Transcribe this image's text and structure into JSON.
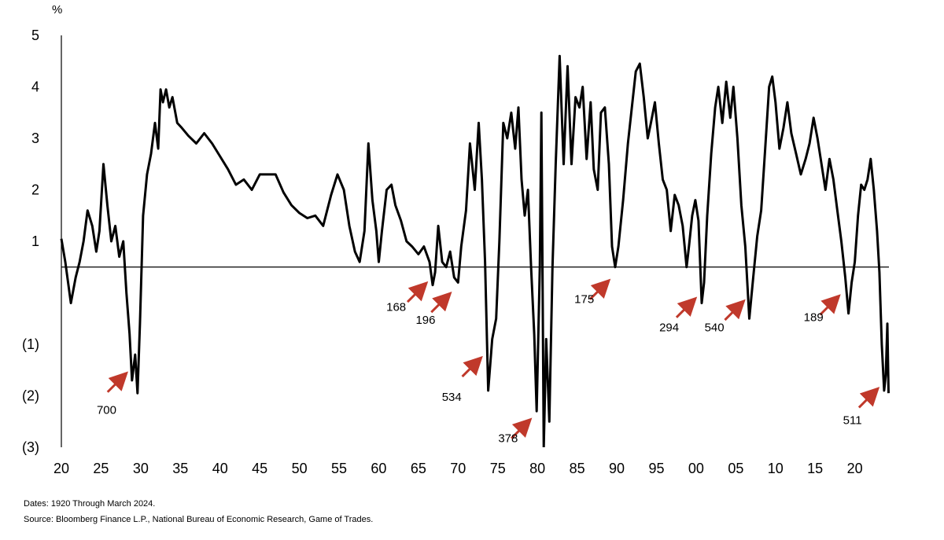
{
  "chart_data": {
    "type": "line",
    "unit_label": "%",
    "title": "",
    "xlabel": "",
    "ylabel": "%",
    "xlim": [
      1920,
      2024.3
    ],
    "ylim": [
      -3,
      5
    ],
    "grid": false,
    "zero_line": 0.5,
    "x_ticks": [
      {
        "x": 1920,
        "label": "20"
      },
      {
        "x": 1925,
        "label": "25"
      },
      {
        "x": 1930,
        "label": "30"
      },
      {
        "x": 1935,
        "label": "35"
      },
      {
        "x": 1940,
        "label": "40"
      },
      {
        "x": 1945,
        "label": "45"
      },
      {
        "x": 1950,
        "label": "50"
      },
      {
        "x": 1955,
        "label": "55"
      },
      {
        "x": 1960,
        "label": "60"
      },
      {
        "x": 1965,
        "label": "65"
      },
      {
        "x": 1970,
        "label": "70"
      },
      {
        "x": 1975,
        "label": "75"
      },
      {
        "x": 1980,
        "label": "80"
      },
      {
        "x": 1985,
        "label": "85"
      },
      {
        "x": 1990,
        "label": "90"
      },
      {
        "x": 1995,
        "label": "95"
      },
      {
        "x": 2000,
        "label": "00"
      },
      {
        "x": 2005,
        "label": "05"
      },
      {
        "x": 2010,
        "label": "10"
      },
      {
        "x": 2015,
        "label": "15"
      },
      {
        "x": 2020,
        "label": "20"
      }
    ],
    "y_ticks": [
      {
        "y": 5,
        "label": "5"
      },
      {
        "y": 4,
        "label": "4"
      },
      {
        "y": 3,
        "label": "3"
      },
      {
        "y": 2,
        "label": "2"
      },
      {
        "y": 1,
        "label": "1"
      },
      {
        "y": -1,
        "label": "(1)"
      },
      {
        "y": -2,
        "label": "(2)"
      },
      {
        "y": -3,
        "label": "(3)"
      }
    ],
    "series": [
      {
        "color": "#000000",
        "points": [
          [
            1920.0,
            1.05
          ],
          [
            1920.5,
            0.6
          ],
          [
            1921.2,
            -0.2
          ],
          [
            1921.8,
            0.3
          ],
          [
            1922.3,
            0.6
          ],
          [
            1922.8,
            1.0
          ],
          [
            1923.3,
            1.6
          ],
          [
            1923.9,
            1.3
          ],
          [
            1924.4,
            0.8
          ],
          [
            1924.8,
            1.2
          ],
          [
            1925.3,
            2.5
          ],
          [
            1925.8,
            1.7
          ],
          [
            1926.3,
            1.0
          ],
          [
            1926.8,
            1.3
          ],
          [
            1927.3,
            0.7
          ],
          [
            1927.8,
            1.0
          ],
          [
            1928.2,
            0.0
          ],
          [
            1928.6,
            -0.8
          ],
          [
            1928.9,
            -1.7
          ],
          [
            1929.3,
            -1.2
          ],
          [
            1929.6,
            -1.95
          ],
          [
            1929.9,
            -0.6
          ],
          [
            1930.3,
            1.5
          ],
          [
            1930.8,
            2.3
          ],
          [
            1931.3,
            2.7
          ],
          [
            1931.8,
            3.3
          ],
          [
            1932.2,
            2.8
          ],
          [
            1932.5,
            3.95
          ],
          [
            1932.8,
            3.7
          ],
          [
            1933.2,
            3.95
          ],
          [
            1933.6,
            3.6
          ],
          [
            1934.0,
            3.8
          ],
          [
            1934.6,
            3.3
          ],
          [
            1935.2,
            3.2
          ],
          [
            1936.0,
            3.05
          ],
          [
            1937.0,
            2.9
          ],
          [
            1938.0,
            3.1
          ],
          [
            1939.0,
            2.9
          ],
          [
            1940.0,
            2.65
          ],
          [
            1941.0,
            2.4
          ],
          [
            1942.0,
            2.1
          ],
          [
            1943.0,
            2.2
          ],
          [
            1944.0,
            2.0
          ],
          [
            1945.0,
            2.3
          ],
          [
            1946.0,
            2.3
          ],
          [
            1947.0,
            2.3
          ],
          [
            1948.0,
            1.95
          ],
          [
            1949.0,
            1.7
          ],
          [
            1950.0,
            1.55
          ],
          [
            1951.0,
            1.45
          ],
          [
            1952.0,
            1.5
          ],
          [
            1953.0,
            1.3
          ],
          [
            1954.0,
            1.9
          ],
          [
            1954.8,
            2.3
          ],
          [
            1955.6,
            2.0
          ],
          [
            1956.3,
            1.3
          ],
          [
            1957.0,
            0.8
          ],
          [
            1957.6,
            0.6
          ],
          [
            1958.2,
            1.2
          ],
          [
            1958.7,
            2.9
          ],
          [
            1959.2,
            1.8
          ],
          [
            1959.7,
            1.2
          ],
          [
            1960.0,
            0.6
          ],
          [
            1960.4,
            1.2
          ],
          [
            1961.0,
            2.0
          ],
          [
            1961.6,
            2.1
          ],
          [
            1962.1,
            1.7
          ],
          [
            1962.8,
            1.4
          ],
          [
            1963.5,
            1.0
          ],
          [
            1964.2,
            0.9
          ],
          [
            1965.0,
            0.75
          ],
          [
            1965.7,
            0.9
          ],
          [
            1966.4,
            0.6
          ],
          [
            1966.8,
            0.15
          ],
          [
            1967.1,
            0.4
          ],
          [
            1967.5,
            1.3
          ],
          [
            1968.0,
            0.6
          ],
          [
            1968.5,
            0.5
          ],
          [
            1969.0,
            0.8
          ],
          [
            1969.5,
            0.3
          ],
          [
            1970.0,
            0.2
          ],
          [
            1970.4,
            0.9
          ],
          [
            1971.0,
            1.6
          ],
          [
            1971.5,
            2.9
          ],
          [
            1972.1,
            2.0
          ],
          [
            1972.6,
            3.3
          ],
          [
            1973.0,
            2.2
          ],
          [
            1973.4,
            0.6
          ],
          [
            1973.8,
            -1.9
          ],
          [
            1974.3,
            -0.9
          ],
          [
            1974.8,
            -0.5
          ],
          [
            1975.2,
            1.0
          ],
          [
            1975.7,
            3.3
          ],
          [
            1976.2,
            3.0
          ],
          [
            1976.7,
            3.5
          ],
          [
            1977.2,
            2.8
          ],
          [
            1977.6,
            3.6
          ],
          [
            1978.0,
            2.2
          ],
          [
            1978.4,
            1.5
          ],
          [
            1978.8,
            2.0
          ],
          [
            1979.2,
            0.5
          ],
          [
            1979.6,
            -0.8
          ],
          [
            1979.9,
            -2.3
          ],
          [
            1980.3,
            0.5
          ],
          [
            1980.5,
            3.5
          ],
          [
            1980.8,
            -3.0
          ],
          [
            1981.1,
            -0.9
          ],
          [
            1981.5,
            -2.5
          ],
          [
            1981.9,
            0.5
          ],
          [
            1982.3,
            2.5
          ],
          [
            1982.8,
            4.6
          ],
          [
            1983.3,
            2.5
          ],
          [
            1983.8,
            4.4
          ],
          [
            1984.3,
            2.5
          ],
          [
            1984.8,
            3.8
          ],
          [
            1985.3,
            3.6
          ],
          [
            1985.7,
            4.0
          ],
          [
            1986.2,
            2.6
          ],
          [
            1986.7,
            3.7
          ],
          [
            1987.1,
            2.4
          ],
          [
            1987.6,
            2.0
          ],
          [
            1988.0,
            3.5
          ],
          [
            1988.5,
            3.6
          ],
          [
            1989.0,
            2.5
          ],
          [
            1989.4,
            0.9
          ],
          [
            1989.8,
            0.5
          ],
          [
            1990.2,
            0.9
          ],
          [
            1990.8,
            1.8
          ],
          [
            1991.4,
            2.9
          ],
          [
            1991.9,
            3.6
          ],
          [
            1992.4,
            4.3
          ],
          [
            1992.9,
            4.45
          ],
          [
            1993.4,
            3.8
          ],
          [
            1993.9,
            3.0
          ],
          [
            1994.3,
            3.3
          ],
          [
            1994.8,
            3.7
          ],
          [
            1995.3,
            2.9
          ],
          [
            1995.8,
            2.2
          ],
          [
            1996.3,
            2.0
          ],
          [
            1996.8,
            1.2
          ],
          [
            1997.3,
            1.9
          ],
          [
            1997.8,
            1.7
          ],
          [
            1998.3,
            1.3
          ],
          [
            1998.8,
            0.5
          ],
          [
            1999.1,
            0.9
          ],
          [
            1999.5,
            1.5
          ],
          [
            1999.9,
            1.8
          ],
          [
            2000.3,
            1.4
          ],
          [
            2000.7,
            -0.2
          ],
          [
            2001.0,
            0.2
          ],
          [
            2001.4,
            1.5
          ],
          [
            2001.9,
            2.7
          ],
          [
            2002.4,
            3.6
          ],
          [
            2002.8,
            4.0
          ],
          [
            2003.3,
            3.3
          ],
          [
            2003.8,
            4.1
          ],
          [
            2004.3,
            3.4
          ],
          [
            2004.7,
            4.0
          ],
          [
            2005.2,
            3.0
          ],
          [
            2005.7,
            1.7
          ],
          [
            2006.2,
            0.9
          ],
          [
            2006.7,
            -0.5
          ],
          [
            2007.2,
            0.3
          ],
          [
            2007.7,
            1.1
          ],
          [
            2008.2,
            1.6
          ],
          [
            2008.7,
            2.8
          ],
          [
            2009.2,
            4.0
          ],
          [
            2009.6,
            4.2
          ],
          [
            2010.0,
            3.7
          ],
          [
            2010.5,
            2.8
          ],
          [
            2011.0,
            3.2
          ],
          [
            2011.5,
            3.7
          ],
          [
            2012.0,
            3.1
          ],
          [
            2012.6,
            2.7
          ],
          [
            2013.2,
            2.3
          ],
          [
            2013.8,
            2.6
          ],
          [
            2014.3,
            2.9
          ],
          [
            2014.8,
            3.4
          ],
          [
            2015.3,
            3.0
          ],
          [
            2015.8,
            2.5
          ],
          [
            2016.3,
            2.0
          ],
          [
            2016.8,
            2.6
          ],
          [
            2017.3,
            2.2
          ],
          [
            2017.8,
            1.6
          ],
          [
            2018.3,
            1.0
          ],
          [
            2018.8,
            0.3
          ],
          [
            2019.2,
            -0.4
          ],
          [
            2019.6,
            0.2
          ],
          [
            2020.0,
            0.6
          ],
          [
            2020.4,
            1.5
          ],
          [
            2020.8,
            2.1
          ],
          [
            2021.2,
            2.0
          ],
          [
            2021.6,
            2.2
          ],
          [
            2022.0,
            2.6
          ],
          [
            2022.4,
            2.0
          ],
          [
            2022.8,
            1.2
          ],
          [
            2023.1,
            0.4
          ],
          [
            2023.4,
            -1.0
          ],
          [
            2023.7,
            -1.9
          ],
          [
            2023.9,
            -1.6
          ],
          [
            2024.1,
            -0.6
          ],
          [
            2024.25,
            -1.95
          ]
        ]
      }
    ],
    "annotations": [
      {
        "label": "700",
        "x": 1928.6,
        "y": -1.5,
        "text_anchor": [
          1925.7,
          -2.35
        ]
      },
      {
        "label": "168",
        "x": 1966.4,
        "y": 0.25,
        "text_anchor": [
          1962.2,
          -0.35
        ]
      },
      {
        "label": "196",
        "x": 1969.4,
        "y": 0.05,
        "text_anchor": [
          1965.9,
          -0.6
        ]
      },
      {
        "label": "534",
        "x": 1973.3,
        "y": -1.2,
        "text_anchor": [
          1969.2,
          -2.1
        ]
      },
      {
        "label": "378",
        "x": 1979.5,
        "y": -2.4,
        "text_anchor": [
          1976.3,
          -2.9
        ]
      },
      {
        "label": "175",
        "x": 1989.4,
        "y": 0.3,
        "text_anchor": [
          1985.9,
          -0.2
        ]
      },
      {
        "label": "294",
        "x": 2000.3,
        "y": -0.05,
        "text_anchor": [
          1996.6,
          -0.75
        ]
      },
      {
        "label": "540",
        "x": 2006.4,
        "y": -0.1,
        "text_anchor": [
          2002.3,
          -0.75
        ]
      },
      {
        "label": "189",
        "x": 2018.4,
        "y": 0.0,
        "text_anchor": [
          2014.8,
          -0.55
        ]
      },
      {
        "label": "511",
        "x": 2023.3,
        "y": -1.8,
        "text_anchor": [
          2019.7,
          -2.55
        ]
      }
    ],
    "annotation_arrow_color": "#c0392b"
  },
  "footer": {
    "dates": "Dates: 1920 Through March 2024.",
    "source": "Source: Bloomberg Finance L.P., National Bureau of Economic Research, Game of Trades."
  }
}
